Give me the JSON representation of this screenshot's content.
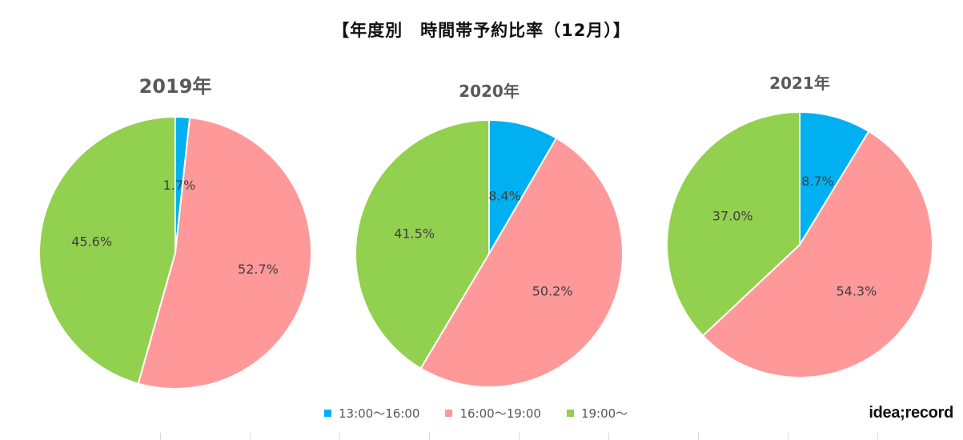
{
  "title": "【年度別　時間帯予約比率（12月）】",
  "brand": "idea;record",
  "colors": {
    "slot_13_16": "#00B0F0",
    "slot_16_19": "#FF9999",
    "slot_19": "#92D050"
  },
  "legend": [
    {
      "label": "13:00～16:00",
      "color": "#00B0F0"
    },
    {
      "label": "16:00～19:00",
      "color": "#FF9999"
    },
    {
      "label": "19:00～",
      "color": "#92D050"
    }
  ],
  "chart_data": [
    {
      "type": "pie",
      "title": "2019年",
      "categories": [
        "13:00～16:00",
        "16:00～19:00",
        "19:00～"
      ],
      "values": [
        1.7,
        52.7,
        45.6
      ],
      "labels": [
        "1.7%",
        "52.7%",
        "45.6%"
      ]
    },
    {
      "type": "pie",
      "title": "2020年",
      "categories": [
        "13:00～16:00",
        "16:00～19:00",
        "19:00～"
      ],
      "values": [
        8.4,
        50.2,
        41.5
      ],
      "labels": [
        "8.4%",
        "50.2%",
        "41.5%"
      ]
    },
    {
      "type": "pie",
      "title": "2021年",
      "categories": [
        "13:00～16:00",
        "16:00～19:00",
        "19:00～"
      ],
      "values": [
        8.7,
        54.3,
        37.0
      ],
      "labels": [
        "8.7%",
        "54.3%",
        "37.0%"
      ]
    }
  ]
}
